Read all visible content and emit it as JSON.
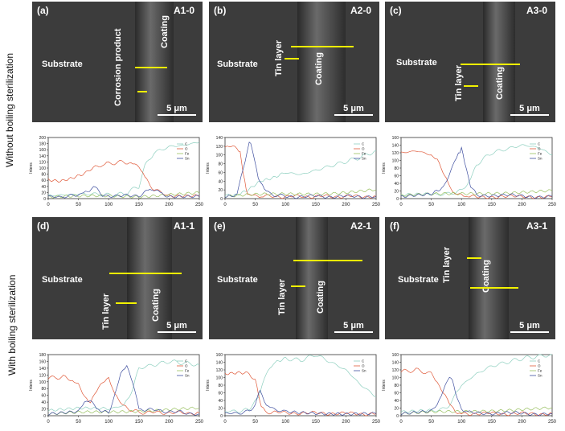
{
  "row_labels": {
    "top": "Without boiling sterilization",
    "bottom": "With boiling sterilization"
  },
  "panels": [
    {
      "letter": "(a)",
      "id": "A1-0",
      "substrate": "Substrate",
      "coating": "Coating",
      "extra": "Corrosion product",
      "scale": "5 μm"
    },
    {
      "letter": "(b)",
      "id": "A2-0",
      "substrate": "Substrate",
      "coating": "Coating",
      "extra": "Tin layer",
      "scale": "5 μm"
    },
    {
      "letter": "(c)",
      "id": "A3-0",
      "substrate": "Substrate",
      "coating": "Coating",
      "extra": "Tin layer",
      "scale": "5 μm"
    },
    {
      "letter": "(d)",
      "id": "A1-1",
      "substrate": "Substrate",
      "coating": "Coating",
      "extra": "Tin layer",
      "scale": "5 μm"
    },
    {
      "letter": "(e)",
      "id": "A2-1",
      "substrate": "Substrate",
      "coating": "Coating",
      "extra": "Tin layer",
      "scale": "5 μm"
    },
    {
      "letter": "(f)",
      "id": "A3-1",
      "substrate": "Substrate",
      "coating": "Coating",
      "extra": "Tin layer",
      "scale": "5 μm"
    }
  ],
  "colors": {
    "C": "#8fd0c0",
    "O": "#e05a3a",
    "Fe": "#98c060",
    "Sn": "#4050a0"
  },
  "chart_data": [
    {
      "type": "line",
      "ylabel": "Intens",
      "ylim": [
        0,
        200
      ],
      "yticks": [
        0,
        20,
        40,
        60,
        80,
        100,
        120,
        140,
        160,
        180,
        200
      ],
      "xlim": [
        0,
        250
      ],
      "xticks": [
        0,
        50,
        100,
        150,
        200,
        250
      ],
      "legend": [
        "C",
        "O",
        "Fe",
        "Sn"
      ],
      "series": [
        {
          "name": "C",
          "x": [
            0,
            25,
            50,
            75,
            100,
            125,
            150,
            160,
            175,
            200,
            225,
            250
          ],
          "y": [
            10,
            12,
            15,
            15,
            12,
            15,
            40,
            110,
            150,
            170,
            175,
            185
          ]
        },
        {
          "name": "O",
          "x": [
            0,
            20,
            40,
            60,
            75,
            90,
            100,
            125,
            140,
            150,
            160,
            175,
            200,
            250
          ],
          "y": [
            62,
            60,
            65,
            80,
            100,
            110,
            115,
            120,
            115,
            110,
            70,
            30,
            10,
            8
          ]
        },
        {
          "name": "Fe",
          "x": [
            0,
            50,
            100,
            150,
            200,
            250
          ],
          "y": [
            5,
            6,
            8,
            8,
            15,
            18
          ]
        },
        {
          "name": "Sn",
          "x": [
            0,
            40,
            55,
            65,
            75,
            90,
            120,
            150,
            165,
            175,
            185,
            200,
            250
          ],
          "y": [
            5,
            8,
            15,
            25,
            40,
            12,
            8,
            10,
            30,
            32,
            20,
            8,
            6
          ]
        }
      ]
    },
    {
      "type": "line",
      "ylabel": "Intens",
      "ylim": [
        0,
        140
      ],
      "yticks": [
        0,
        20,
        40,
        60,
        80,
        100,
        120,
        140
      ],
      "xlim": [
        0,
        250
      ],
      "xticks": [
        0,
        50,
        100,
        150,
        200,
        250
      ],
      "legend": [
        "C",
        "O",
        "Fe",
        "Sn"
      ],
      "series": [
        {
          "name": "C",
          "x": [
            0,
            20,
            40,
            60,
            80,
            100,
            125,
            150,
            175,
            200,
            225,
            250
          ],
          "y": [
            8,
            10,
            20,
            40,
            50,
            60,
            55,
            65,
            75,
            85,
            95,
            110
          ]
        },
        {
          "name": "O",
          "x": [
            0,
            10,
            20,
            25,
            30,
            35,
            40,
            50,
            60,
            250
          ],
          "y": [
            120,
            118,
            115,
            105,
            60,
            20,
            8,
            5,
            5,
            5
          ]
        },
        {
          "name": "Fe",
          "x": [
            0,
            50,
            100,
            150,
            200,
            250
          ],
          "y": [
            5,
            8,
            10,
            12,
            15,
            20
          ]
        },
        {
          "name": "Sn",
          "x": [
            0,
            20,
            30,
            40,
            45,
            55,
            65,
            75,
            100,
            250
          ],
          "y": [
            5,
            10,
            70,
            130,
            115,
            50,
            20,
            10,
            5,
            5
          ]
        }
      ]
    },
    {
      "type": "line",
      "ylabel": "Intens",
      "ylim": [
        0,
        160
      ],
      "yticks": [
        0,
        20,
        40,
        60,
        80,
        100,
        120,
        140,
        160
      ],
      "xlim": [
        0,
        250
      ],
      "xticks": [
        0,
        50,
        100,
        150,
        200,
        250
      ],
      "legend": [
        "C",
        "O",
        "Fe",
        "Sn"
      ],
      "series": [
        {
          "name": "C",
          "x": [
            0,
            50,
            75,
            100,
            115,
            125,
            150,
            175,
            200,
            225,
            250
          ],
          "y": [
            10,
            10,
            12,
            20,
            50,
            90,
            120,
            130,
            140,
            135,
            115
          ]
        },
        {
          "name": "O",
          "x": [
            0,
            25,
            50,
            60,
            75,
            85,
            100,
            110,
            250
          ],
          "y": [
            120,
            125,
            115,
            100,
            50,
            15,
            8,
            5,
            5
          ]
        },
        {
          "name": "Fe",
          "x": [
            0,
            50,
            100,
            150,
            200,
            250
          ],
          "y": [
            8,
            10,
            12,
            15,
            18,
            20
          ]
        },
        {
          "name": "Sn",
          "x": [
            0,
            50,
            70,
            85,
            95,
            100,
            105,
            115,
            125,
            250
          ],
          "y": [
            5,
            10,
            30,
            80,
            120,
            130,
            100,
            30,
            10,
            5
          ]
        }
      ]
    },
    {
      "type": "line",
      "ylabel": "Intens",
      "ylim": [
        0,
        180
      ],
      "yticks": [
        0,
        20,
        40,
        60,
        80,
        100,
        120,
        140,
        160,
        180
      ],
      "xlim": [
        0,
        250
      ],
      "xticks": [
        0,
        50,
        100,
        150,
        200,
        250
      ],
      "legend": [
        "C",
        "O",
        "Fe",
        "Sn"
      ],
      "series": [
        {
          "name": "C",
          "x": [
            0,
            50,
            100,
            125,
            140,
            150,
            175,
            200,
            225,
            250
          ],
          "y": [
            15,
            20,
            20,
            30,
            80,
            140,
            150,
            160,
            155,
            150
          ]
        },
        {
          "name": "O",
          "x": [
            0,
            25,
            40,
            50,
            60,
            70,
            80,
            90,
            100,
            110,
            125,
            140,
            150,
            250
          ],
          "y": [
            110,
            115,
            100,
            90,
            60,
            40,
            70,
            100,
            115,
            60,
            30,
            15,
            10,
            8
          ]
        },
        {
          "name": "Fe",
          "x": [
            0,
            50,
            100,
            150,
            200,
            250
          ],
          "y": [
            5,
            8,
            10,
            15,
            20,
            22
          ]
        },
        {
          "name": "Sn",
          "x": [
            0,
            50,
            60,
            70,
            80,
            100,
            110,
            120,
            130,
            140,
            150,
            250
          ],
          "y": [
            5,
            10,
            40,
            50,
            20,
            10,
            60,
            120,
            150,
            100,
            20,
            5
          ]
        }
      ]
    },
    {
      "type": "line",
      "ylabel": "Intens",
      "ylim": [
        0,
        160
      ],
      "yticks": [
        0,
        20,
        40,
        60,
        80,
        100,
        120,
        140,
        160
      ],
      "xlim": [
        0,
        250
      ],
      "xticks": [
        0,
        50,
        100,
        150,
        200,
        250
      ],
      "legend": [
        "C",
        "O",
        "Sn"
      ],
      "series": [
        {
          "name": "C",
          "x": [
            0,
            40,
            55,
            65,
            80,
            100,
            125,
            150,
            175,
            200,
            225,
            250
          ],
          "y": [
            10,
            15,
            50,
            100,
            140,
            150,
            145,
            160,
            140,
            120,
            80,
            50
          ]
        },
        {
          "name": "O",
          "x": [
            0,
            20,
            40,
            50,
            55,
            60,
            70,
            250
          ],
          "y": [
            110,
            115,
            110,
            95,
            60,
            20,
            8,
            5
          ]
        },
        {
          "name": "Sn",
          "x": [
            0,
            40,
            50,
            58,
            65,
            75,
            100,
            150,
            200,
            250
          ],
          "y": [
            5,
            10,
            30,
            70,
            40,
            20,
            10,
            8,
            6,
            5
          ]
        }
      ]
    },
    {
      "type": "line",
      "ylabel": "Intens",
      "ylim": [
        0,
        160
      ],
      "yticks": [
        0,
        20,
        40,
        60,
        80,
        100,
        120,
        140,
        160
      ],
      "xlim": [
        0,
        250
      ],
      "xticks": [
        0,
        50,
        100,
        150,
        200,
        250
      ],
      "legend": [
        "C",
        "O",
        "Fe",
        "Sn"
      ],
      "series": [
        {
          "name": "C",
          "x": [
            0,
            50,
            75,
            85,
            100,
            125,
            150,
            175,
            200,
            225,
            250
          ],
          "y": [
            10,
            12,
            20,
            40,
            80,
            110,
            130,
            140,
            150,
            155,
            160
          ]
        },
        {
          "name": "O",
          "x": [
            0,
            25,
            50,
            60,
            70,
            80,
            90,
            100,
            250
          ],
          "y": [
            115,
            120,
            110,
            90,
            60,
            30,
            12,
            6,
            5
          ]
        },
        {
          "name": "Fe",
          "x": [
            0,
            50,
            100,
            150,
            200,
            250
          ],
          "y": [
            5,
            8,
            10,
            14,
            18,
            20
          ]
        },
        {
          "name": "Sn",
          "x": [
            0,
            50,
            60,
            70,
            80,
            85,
            90,
            100,
            110,
            250
          ],
          "y": [
            5,
            10,
            30,
            70,
            100,
            95,
            60,
            20,
            8,
            5
          ]
        }
      ]
    }
  ]
}
